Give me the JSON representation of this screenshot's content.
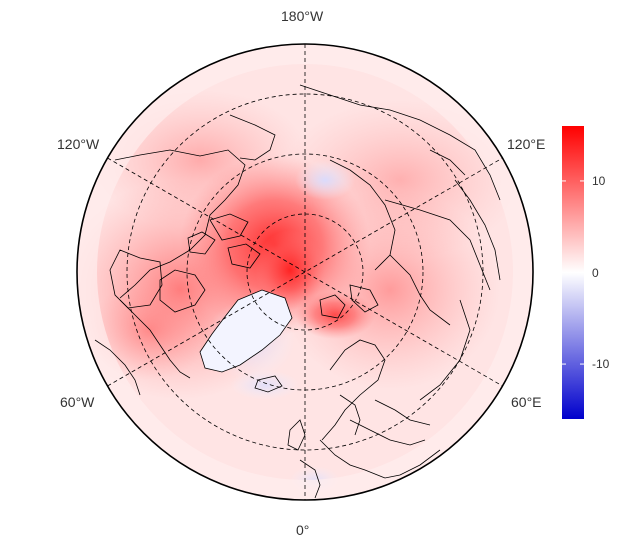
{
  "map": {
    "projection": "north polar stereographic",
    "longitude_labels": {
      "top": "180°W",
      "bottom": "0°",
      "upper_left": "120°W",
      "upper_right": "120°E",
      "lower_left": "60°W",
      "lower_right": "60°E"
    },
    "colors": {
      "negative": "#0000cc",
      "zero": "#ffffff",
      "positive": "#ff0000",
      "coastline": "#000000",
      "grid": "#000000"
    }
  },
  "colorbar": {
    "range": [
      -16,
      16
    ],
    "ticks": [
      {
        "value": 10,
        "label": "10"
      },
      {
        "value": 0,
        "label": "0"
      },
      {
        "value": -10,
        "label": "-10"
      }
    ]
  }
}
